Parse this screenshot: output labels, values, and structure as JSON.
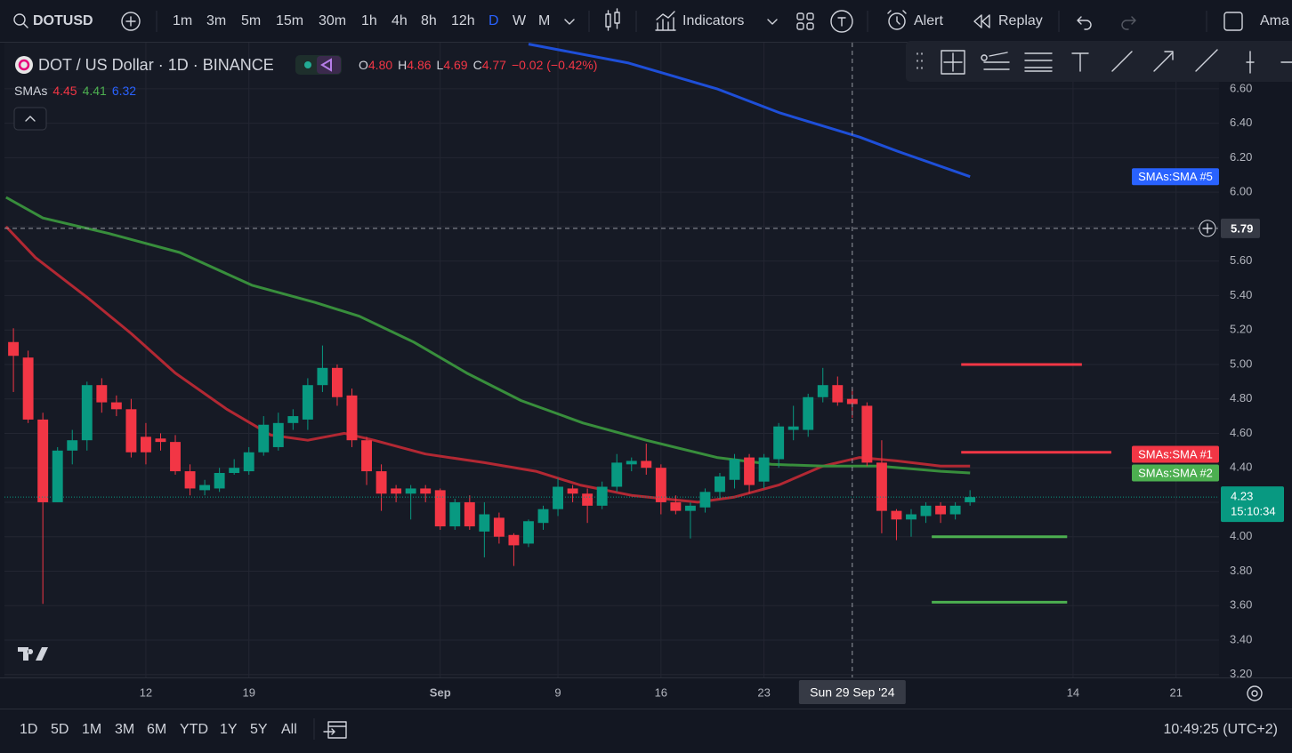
{
  "toolbar": {
    "symbol": "DOTUSD",
    "intervals": [
      "1m",
      "3m",
      "5m",
      "15m",
      "30m",
      "1h",
      "4h",
      "8h",
      "12h",
      "D",
      "W",
      "M"
    ],
    "indicators": "Indicators",
    "alert": "Alert",
    "replay": "Replay",
    "account": "Ama"
  },
  "legend": {
    "title": "DOT / US Dollar · 1D · BINANCE",
    "ohlc": [
      {
        "key": "O",
        "value": "4.80"
      },
      {
        "key": "H",
        "value": "4.86"
      },
      {
        "key": "L",
        "value": "4.69"
      },
      {
        "key": "C",
        "value": "4.77"
      }
    ],
    "change": "−0.02 (−0.42%)",
    "sma_label": "SMAs",
    "sma_values": [
      "4.45",
      "4.41",
      "6.32"
    ]
  },
  "chart_data": {
    "type": "candlestick",
    "up_color": "#089981",
    "down_color": "#f23645",
    "candles": {
      "open": [
        5.13,
        5.04,
        4.68,
        4.2,
        4.5,
        4.56,
        4.88,
        4.78,
        4.74,
        4.58,
        4.57,
        4.55,
        4.38,
        4.27,
        4.28,
        4.37,
        4.38,
        4.49,
        4.52,
        4.66,
        4.68,
        4.88,
        4.98,
        4.82,
        4.56,
        4.38,
        4.28,
        4.25,
        4.28,
        4.27,
        4.06,
        4.2,
        4.03,
        4.11,
        4.01,
        3.96,
        4.08,
        4.16,
        4.28,
        4.25,
        4.18,
        4.29,
        4.42,
        4.44,
        4.4,
        4.2,
        4.15,
        4.17,
        4.26,
        4.33,
        4.46,
        4.32,
        4.45,
        4.62,
        4.62,
        4.81,
        4.88,
        4.8,
        4.76,
        4.43,
        4.15,
        4.1,
        4.12,
        4.18,
        4.13,
        4.2
      ],
      "high": [
        5.21,
        5.08,
        4.72,
        4.52,
        4.62,
        4.9,
        4.92,
        4.82,
        4.8,
        4.66,
        4.6,
        4.59,
        4.42,
        4.33,
        4.4,
        4.45,
        4.52,
        4.7,
        4.72,
        4.74,
        4.92,
        5.11,
        5.0,
        4.86,
        4.58,
        4.42,
        4.3,
        4.3,
        4.3,
        4.28,
        4.22,
        4.24,
        4.2,
        4.14,
        4.02,
        4.1,
        4.18,
        4.34,
        4.3,
        4.28,
        4.32,
        4.48,
        4.46,
        4.54,
        4.42,
        4.24,
        4.2,
        4.28,
        4.37,
        4.48,
        4.48,
        4.48,
        4.66,
        4.76,
        4.83,
        4.98,
        4.93,
        4.86,
        4.78,
        4.56,
        4.16,
        4.16,
        4.2,
        4.2,
        4.2,
        4.27
      ],
      "low": [
        4.84,
        4.66,
        3.61,
        4.2,
        4.42,
        4.5,
        4.72,
        4.7,
        4.46,
        4.42,
        4.5,
        4.36,
        4.24,
        4.24,
        4.26,
        4.36,
        4.36,
        4.47,
        4.5,
        4.62,
        4.62,
        4.84,
        4.76,
        4.52,
        4.3,
        4.15,
        4.2,
        4.1,
        4.2,
        4.04,
        4.04,
        4.04,
        3.88,
        3.96,
        3.83,
        3.94,
        4.04,
        4.12,
        4.2,
        4.08,
        4.16,
        4.26,
        4.38,
        4.36,
        4.13,
        4.13,
        3.99,
        4.14,
        4.22,
        4.28,
        4.25,
        4.28,
        4.4,
        4.56,
        4.58,
        4.78,
        4.76,
        4.69,
        4.41,
        4.02,
        3.98,
        4.0,
        4.08,
        4.08,
        4.1,
        4.18
      ],
      "close": [
        5.05,
        4.68,
        4.2,
        4.5,
        4.56,
        4.88,
        4.78,
        4.74,
        4.49,
        4.49,
        4.55,
        4.38,
        4.28,
        4.3,
        4.37,
        4.4,
        4.49,
        4.65,
        4.66,
        4.7,
        4.88,
        4.98,
        4.81,
        4.56,
        4.38,
        4.25,
        4.25,
        4.28,
        4.25,
        4.06,
        4.2,
        4.06,
        4.13,
        4.0,
        3.95,
        4.09,
        4.16,
        4.29,
        4.25,
        4.18,
        4.29,
        4.43,
        4.44,
        4.4,
        4.2,
        4.15,
        4.18,
        4.26,
        4.35,
        4.45,
        4.3,
        4.46,
        4.64,
        4.64,
        4.81,
        4.88,
        4.78,
        4.77,
        4.43,
        4.15,
        4.1,
        4.13,
        4.18,
        4.13,
        4.18,
        4.23
      ]
    },
    "sma": [
      {
        "name": "SMAs:SMA #1",
        "color": "#b22833",
        "label_color": "#f23645",
        "x": [
          -0.5,
          1.5,
          5,
          8,
          11,
          14.5,
          17.5,
          20,
          22.5,
          24.5,
          28,
          32,
          35.5,
          38.5,
          42,
          46.5,
          49,
          52,
          55,
          57.5,
          60,
          63,
          65
        ],
        "values": [
          5.8,
          5.62,
          5.39,
          5.18,
          4.95,
          4.74,
          4.59,
          4.56,
          4.6,
          4.56,
          4.48,
          4.43,
          4.38,
          4.3,
          4.24,
          4.2,
          4.23,
          4.3,
          4.41,
          4.46,
          4.44,
          4.41,
          4.41
        ]
      },
      {
        "name": "SMAs:SMA #2",
        "color": "#388e3c",
        "label_color": "#4caf50",
        "x": [
          -0.5,
          2,
          6.5,
          11.3,
          16.2,
          20.5,
          23.5,
          27.2,
          30.8,
          34.5,
          38.7,
          43,
          47.8,
          51.5,
          55.1,
          58.8,
          63,
          65
        ],
        "values": [
          5.97,
          5.85,
          5.76,
          5.65,
          5.46,
          5.36,
          5.28,
          5.13,
          4.95,
          4.79,
          4.66,
          4.56,
          4.46,
          4.42,
          4.41,
          4.41,
          4.38,
          4.37
        ]
      },
      {
        "name": "SMAs:SMA #5",
        "color": "#1e4fd8",
        "label_color": "#2962ff",
        "x": [
          35,
          41.8,
          47.8,
          52.1,
          57.5,
          60,
          65
        ],
        "values": [
          6.86,
          6.75,
          6.6,
          6.46,
          6.32,
          6.24,
          6.09
        ]
      }
    ],
    "hlines": [
      {
        "value": 5.0,
        "x": [
          64.4,
          72.6
        ],
        "color": "#f23645"
      },
      {
        "value": 4.49,
        "x": [
          64.4,
          74.6
        ],
        "color": "#f23645"
      },
      {
        "value": 4.0,
        "x": [
          62.4,
          71.6
        ],
        "color": "#4caf50"
      },
      {
        "value": 3.62,
        "x": [
          62.4,
          71.6
        ],
        "color": "#4caf50"
      }
    ],
    "last_price": {
      "value": 4.23,
      "label": "4.23",
      "countdown": "15:10:34"
    },
    "crosshair": {
      "value": 5.79,
      "label": "5.79",
      "x": 57,
      "x_label": "Sun 29 Sep '24"
    },
    "xlim": [
      -0.61,
      81.92
    ],
    "ylim": [
      3.183,
      6.868
    ],
    "xticks": [
      {
        "value": 9,
        "label": "12"
      },
      {
        "value": 16,
        "label": "19"
      },
      {
        "value": 29,
        "label": "Sep"
      },
      {
        "value": 37,
        "label": "9"
      },
      {
        "value": 44,
        "label": "16"
      },
      {
        "value": 51,
        "label": "23"
      },
      {
        "value": 72,
        "label": "14"
      },
      {
        "value": 79,
        "label": "21"
      }
    ],
    "yticks": [
      {
        "value": 6.6,
        "label": "6.60"
      },
      {
        "value": 6.4,
        "label": "6.40"
      },
      {
        "value": 6.2,
        "label": "6.20"
      },
      {
        "value": 6.0,
        "label": "6.00"
      },
      {
        "value": 5.8,
        "label": "5.80"
      },
      {
        "value": 5.6,
        "label": "5.60"
      },
      {
        "value": 5.4,
        "label": "5.40"
      },
      {
        "value": 5.2,
        "label": "5.20"
      },
      {
        "value": 5.0,
        "label": "5.00"
      },
      {
        "value": 4.8,
        "label": "4.80"
      },
      {
        "value": 4.6,
        "label": "4.60"
      },
      {
        "value": 4.4,
        "label": "4.40"
      },
      {
        "value": 4.2,
        "label": "4.20"
      },
      {
        "value": 4.0,
        "label": "4.00"
      },
      {
        "value": 3.8,
        "label": "3.80"
      },
      {
        "value": 3.6,
        "label": "3.60"
      },
      {
        "value": 3.4,
        "label": "3.40"
      },
      {
        "value": 3.2,
        "label": "3.20"
      }
    ],
    "grid": true
  },
  "bottom": {
    "ranges": [
      "1D",
      "5D",
      "1M",
      "3M",
      "6M",
      "YTD",
      "1Y",
      "5Y",
      "All"
    ],
    "clock": "10:49:25 (UTC+2)"
  }
}
